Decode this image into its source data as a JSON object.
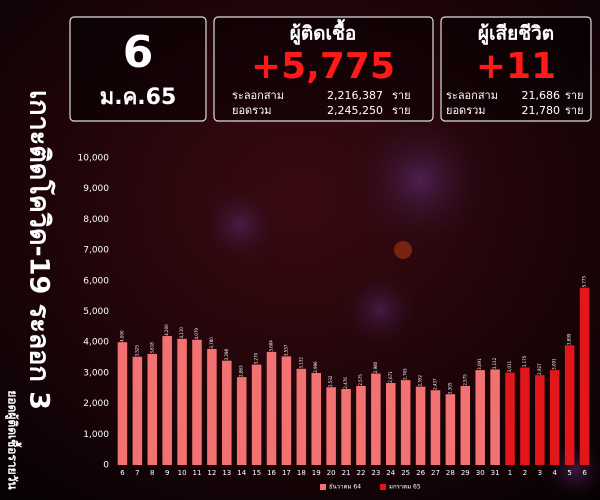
{
  "header": {
    "side_title": "เกาะติดโควิด-19 ระลอก 3",
    "side_subtitle": "ยอดผู้ติดเชื้อรายวัน",
    "day": "6",
    "month": "ม.ค.65",
    "cases": {
      "title": "ผู้ติดเชื้อ",
      "value": "+5,775",
      "row1_label": "ระลอกสาม",
      "row1_value": "2,216,387",
      "row1_unit": "ราย",
      "row2_label": "ยอดรวม",
      "row2_value": "2,245,250",
      "row2_unit": "ราย"
    },
    "deaths": {
      "title": "ผู้เสียชีวิต",
      "value": "+11",
      "row1_label": "ระลอกสาม",
      "row1_value": "21,686",
      "row1_unit": "ราย",
      "row2_label": "ยอดรวม",
      "row2_value": "21,780",
      "row2_unit": "ราย"
    }
  },
  "chart_data": {
    "type": "bar",
    "categories": [
      "6",
      "7",
      "8",
      "9",
      "10",
      "11",
      "12",
      "13",
      "14",
      "15",
      "16",
      "17",
      "18",
      "19",
      "20",
      "21",
      "22",
      "23",
      "24",
      "25",
      "26",
      "27",
      "28",
      "29",
      "30",
      "31",
      "1",
      "2",
      "3",
      "4",
      "5",
      "6"
    ],
    "series": [
      {
        "name": "ธันวาคม 64",
        "color": "#f27272",
        "values": [
          4000,
          3525,
          3618,
          4200,
          4110,
          4079,
          3780,
          3398,
          2863,
          3270,
          3684,
          3537,
          3132,
          2996,
          2532,
          2476,
          2575,
          2980,
          2671,
          2765,
          2552,
          2437,
          2305,
          2575,
          3091,
          3112,
          null,
          null,
          null,
          null,
          null,
          null
        ],
        "value_labels": [
          "4,000",
          "3,525",
          "3,618",
          "4,200",
          "4,110",
          "4,079",
          "3,780",
          "3,398",
          "2,863",
          "3,270",
          "3,684",
          "3,537",
          "3,132",
          "2,996",
          "2,532",
          "2,476",
          "2,575",
          "2,980",
          "2,671",
          "2,765",
          "2,552",
          "2,437",
          "2,305",
          "2,575",
          "3,091",
          "3,112",
          null,
          null,
          null,
          null,
          null,
          null
        ]
      },
      {
        "name": "มกราคม 65",
        "color": "#e3161b",
        "values": [
          null,
          null,
          null,
          null,
          null,
          null,
          null,
          null,
          null,
          null,
          null,
          null,
          null,
          null,
          null,
          null,
          null,
          null,
          null,
          null,
          null,
          null,
          null,
          null,
          null,
          null,
          3011,
          3175,
          2927,
          3091,
          3899,
          5775
        ],
        "value_labels": [
          null,
          null,
          null,
          null,
          null,
          null,
          null,
          null,
          null,
          null,
          null,
          null,
          null,
          null,
          null,
          null,
          null,
          null,
          null,
          null,
          null,
          null,
          null,
          null,
          null,
          null,
          "3,011",
          "3,175",
          "2,927",
          "3,091",
          "3,899",
          "5,775"
        ]
      }
    ],
    "ylim": [
      0,
      10000
    ],
    "yticks": [
      0,
      {
        "value": 1000,
        "label": "1,000"
      },
      {
        "value": 2000,
        "label": "2,000"
      },
      {
        "value": 3000,
        "label": "3,000"
      },
      {
        "value": 4000,
        "label": "4,000"
      },
      {
        "value": 5000,
        "label": "5,000"
      },
      {
        "value": 6000,
        "label": "6,000"
      },
      {
        "value": 7000,
        "label": "7,000"
      },
      {
        "value": 8000,
        "label": "8,000"
      },
      {
        "value": 9000,
        "label": "9,000"
      },
      {
        "value": 10000,
        "label": "10,000"
      }
    ],
    "grid": false,
    "legend": "bottom"
  }
}
